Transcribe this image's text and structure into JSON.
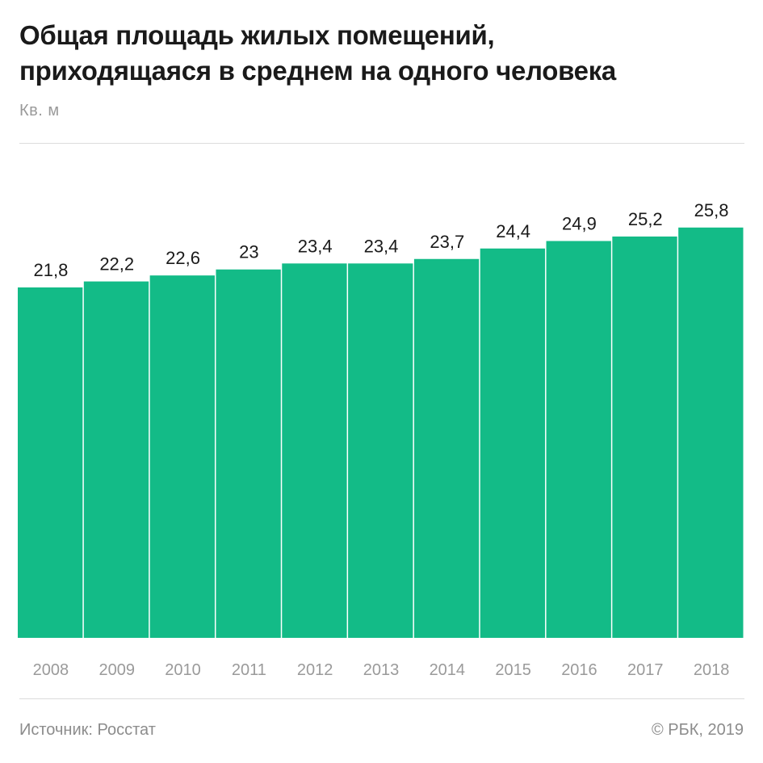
{
  "header": {
    "title_line1": "Общая площадь жилых помещений,",
    "title_line2": "приходящаяся в среднем на одного человека",
    "unit": "Кв. м"
  },
  "footer": {
    "source": "Источник: Росстат",
    "copyright": "© РБК, 2019"
  },
  "colors": {
    "bar": "#13bb87",
    "bar_separator": "#ffffff",
    "value_label": "#1a1a1a",
    "tick_label": "#9a9a9a"
  },
  "chart_data": {
    "type": "bar",
    "title": "Общая площадь жилых помещений, приходящаяся в среднем на одного человека",
    "ylabel": "Кв. м",
    "xlabel": "",
    "categories": [
      "2008",
      "2009",
      "2010",
      "2011",
      "2012",
      "2013",
      "2014",
      "2015",
      "2016",
      "2017",
      "2018"
    ],
    "values": [
      21.8,
      22.2,
      22.6,
      23,
      23.4,
      23.4,
      23.7,
      24.4,
      24.9,
      25.2,
      25.8
    ],
    "value_labels": [
      "21,8",
      "22,2",
      "22,6",
      "23",
      "23,4",
      "23,4",
      "23,7",
      "24,4",
      "24,9",
      "25,2",
      "25,8"
    ],
    "grid": false,
    "legend": "none"
  }
}
